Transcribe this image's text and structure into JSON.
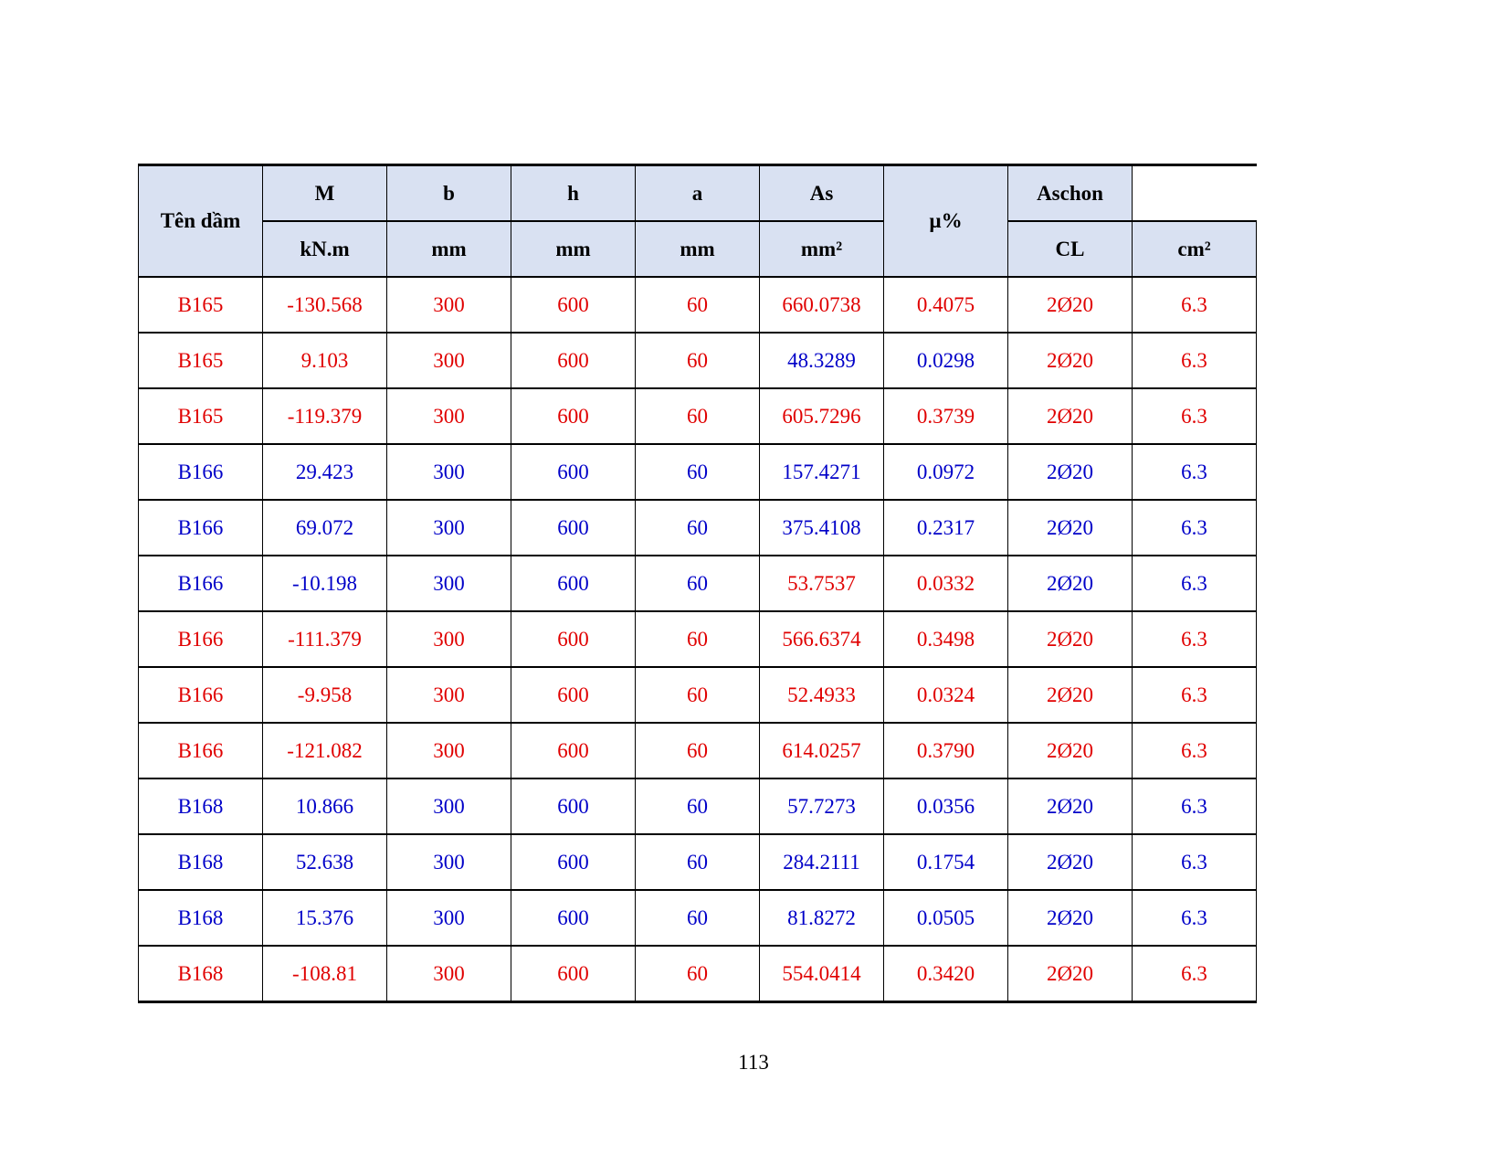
{
  "table": {
    "header_top": [
      "Tên dầm",
      "M",
      "b",
      "h",
      "a",
      "As",
      "µ%",
      "Aschon"
    ],
    "header_units": [
      "kN.m",
      "mm",
      "mm",
      "mm",
      "mm²",
      "CL",
      "cm²"
    ],
    "colors": {
      "red": "#e00000",
      "blue": "#0000c8",
      "header_bg": "#d9e1f2"
    },
    "rows": [
      {
        "name": "B165",
        "M": "-130.568",
        "b": "300",
        "h": "600",
        "a": "60",
        "As": "660.0738",
        "mu": "0.4075",
        "CL": "2Ø20",
        "cm2": "6.3",
        "color": "red",
        "as_color": "red"
      },
      {
        "name": "B165",
        "M": "9.103",
        "b": "300",
        "h": "600",
        "a": "60",
        "As": "48.3289",
        "mu": "0.0298",
        "CL": "2Ø20",
        "cm2": "6.3",
        "color": "red",
        "as_color": "blue"
      },
      {
        "name": "B165",
        "M": "-119.379",
        "b": "300",
        "h": "600",
        "a": "60",
        "As": "605.7296",
        "mu": "0.3739",
        "CL": "2Ø20",
        "cm2": "6.3",
        "color": "red",
        "as_color": "red"
      },
      {
        "name": "B166",
        "M": "29.423",
        "b": "300",
        "h": "600",
        "a": "60",
        "As": "157.4271",
        "mu": "0.0972",
        "CL": "2Ø20",
        "cm2": "6.3",
        "color": "blue",
        "as_color": "blue"
      },
      {
        "name": "B166",
        "M": "69.072",
        "b": "300",
        "h": "600",
        "a": "60",
        "As": "375.4108",
        "mu": "0.2317",
        "CL": "2Ø20",
        "cm2": "6.3",
        "color": "blue",
        "as_color": "blue"
      },
      {
        "name": "B166",
        "M": "-10.198",
        "b": "300",
        "h": "600",
        "a": "60",
        "As": "53.7537",
        "mu": "0.0332",
        "CL": "2Ø20",
        "cm2": "6.3",
        "color": "blue",
        "as_color": "red"
      },
      {
        "name": "B166",
        "M": "-111.379",
        "b": "300",
        "h": "600",
        "a": "60",
        "As": "566.6374",
        "mu": "0.3498",
        "CL": "2Ø20",
        "cm2": "6.3",
        "color": "red",
        "as_color": "red"
      },
      {
        "name": "B166",
        "M": "-9.958",
        "b": "300",
        "h": "600",
        "a": "60",
        "As": "52.4933",
        "mu": "0.0324",
        "CL": "2Ø20",
        "cm2": "6.3",
        "color": "red",
        "as_color": "red"
      },
      {
        "name": "B166",
        "M": "-121.082",
        "b": "300",
        "h": "600",
        "a": "60",
        "As": "614.0257",
        "mu": "0.3790",
        "CL": "2Ø20",
        "cm2": "6.3",
        "color": "red",
        "as_color": "red"
      },
      {
        "name": "B168",
        "M": "10.866",
        "b": "300",
        "h": "600",
        "a": "60",
        "As": "57.7273",
        "mu": "0.0356",
        "CL": "2Ø20",
        "cm2": "6.3",
        "color": "blue",
        "as_color": "blue"
      },
      {
        "name": "B168",
        "M": "52.638",
        "b": "300",
        "h": "600",
        "a": "60",
        "As": "284.2111",
        "mu": "0.1754",
        "CL": "2Ø20",
        "cm2": "6.3",
        "color": "blue",
        "as_color": "blue"
      },
      {
        "name": "B168",
        "M": "15.376",
        "b": "300",
        "h": "600",
        "a": "60",
        "As": "81.8272",
        "mu": "0.0505",
        "CL": "2Ø20",
        "cm2": "6.3",
        "color": "blue",
        "as_color": "blue"
      },
      {
        "name": "B168",
        "M": "-108.81",
        "b": "300",
        "h": "600",
        "a": "60",
        "As": "554.0414",
        "mu": "0.3420",
        "CL": "2Ø20",
        "cm2": "6.3",
        "color": "red",
        "as_color": "red"
      }
    ]
  },
  "page_number": "113"
}
